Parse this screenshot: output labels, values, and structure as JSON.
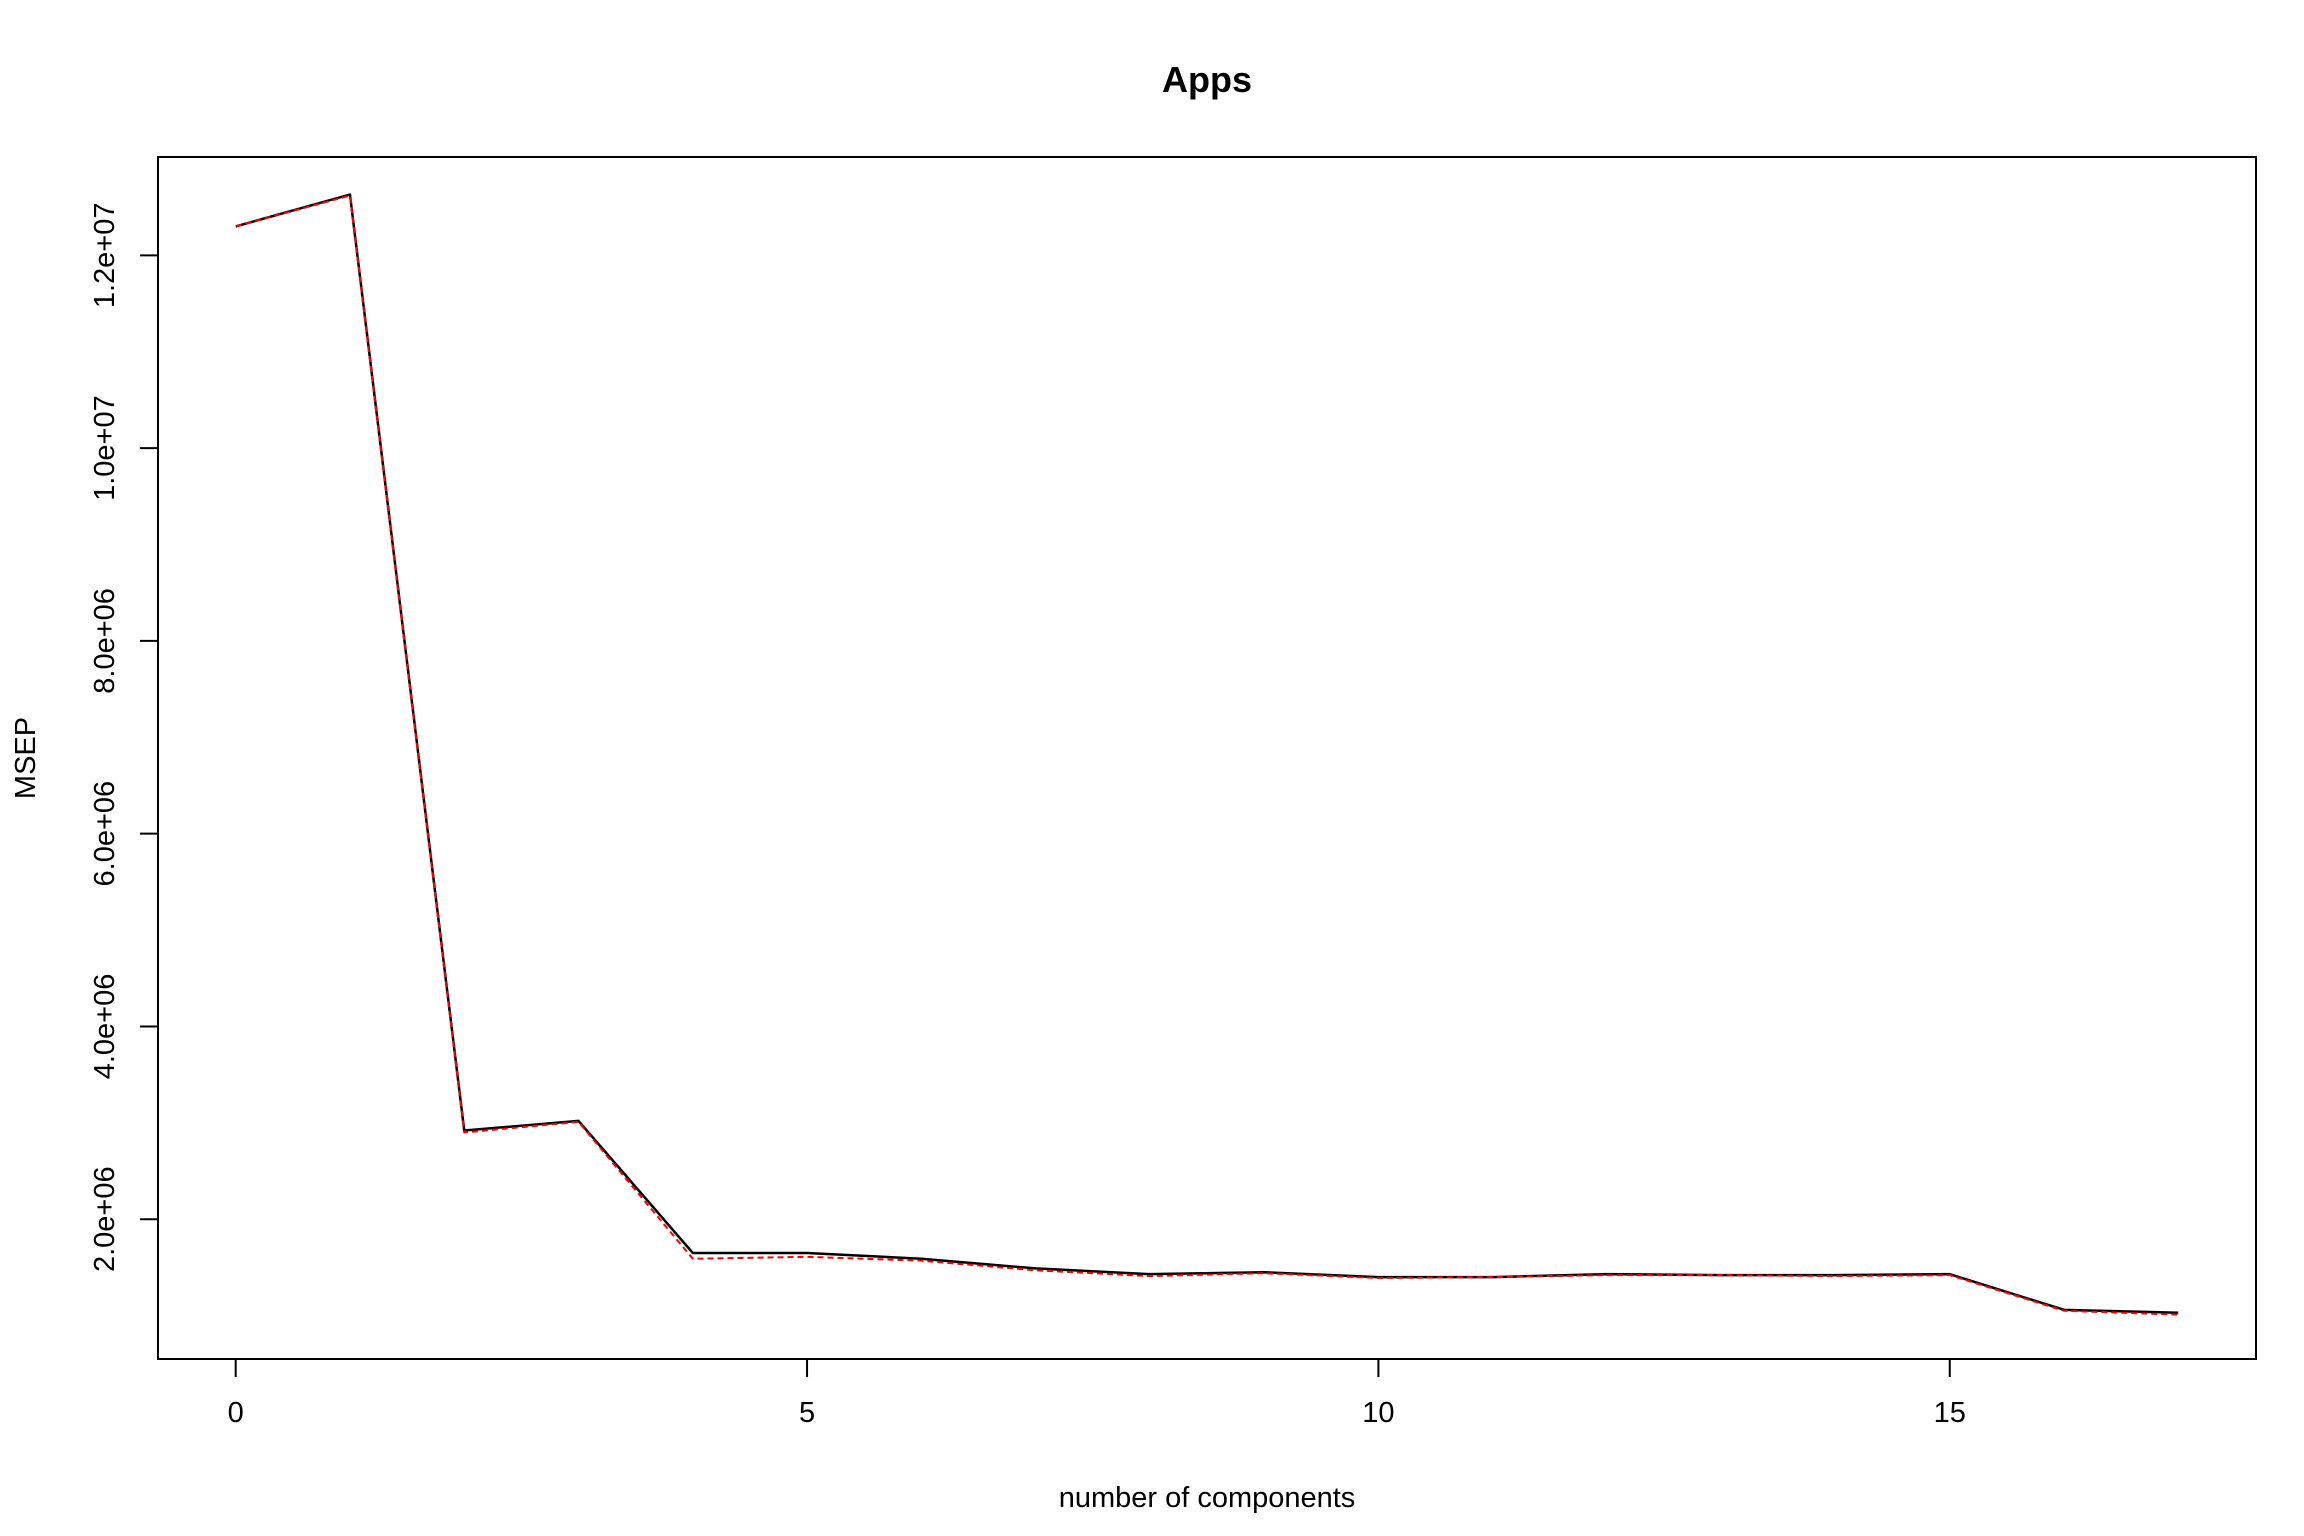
{
  "chart_data": {
    "type": "line",
    "title": "Apps",
    "xlabel": "number of components",
    "ylabel": "MSEP",
    "x": [
      0,
      1,
      2,
      3,
      4,
      5,
      6,
      7,
      8,
      9,
      10,
      11,
      12,
      13,
      14,
      15,
      16,
      17
    ],
    "series": [
      {
        "color": "#000000",
        "dash": "solid",
        "values": [
          12300000,
          12630000,
          2920000,
          3020000,
          1650000,
          1650000,
          1590000,
          1490000,
          1430000,
          1450000,
          1400000,
          1400000,
          1430000,
          1420000,
          1420000,
          1430000,
          1060000,
          1030000
        ]
      },
      {
        "color": "#ff0000",
        "dash": "dashed",
        "values": [
          12300000,
          12620000,
          2900000,
          3010000,
          1590000,
          1610000,
          1570000,
          1470000,
          1410000,
          1440000,
          1390000,
          1400000,
          1420000,
          1420000,
          1410000,
          1420000,
          1050000,
          1010000
        ]
      }
    ],
    "xlim": [
      -0.68,
      17.68
    ],
    "ylim": [
      550000,
      13020000
    ],
    "x_ticks": [
      0,
      5,
      10,
      15
    ],
    "x_tick_labels": [
      "0",
      "5",
      "10",
      "15"
    ],
    "y_ticks": [
      2000000,
      4000000,
      6000000,
      8000000,
      10000000,
      12000000
    ],
    "y_tick_labels": [
      "2.0e+06",
      "4.0e+06",
      "6.0e+06",
      "8.0e+06",
      "1.0e+07",
      "1.2e+07"
    ],
    "grid": false,
    "legend": "none"
  }
}
